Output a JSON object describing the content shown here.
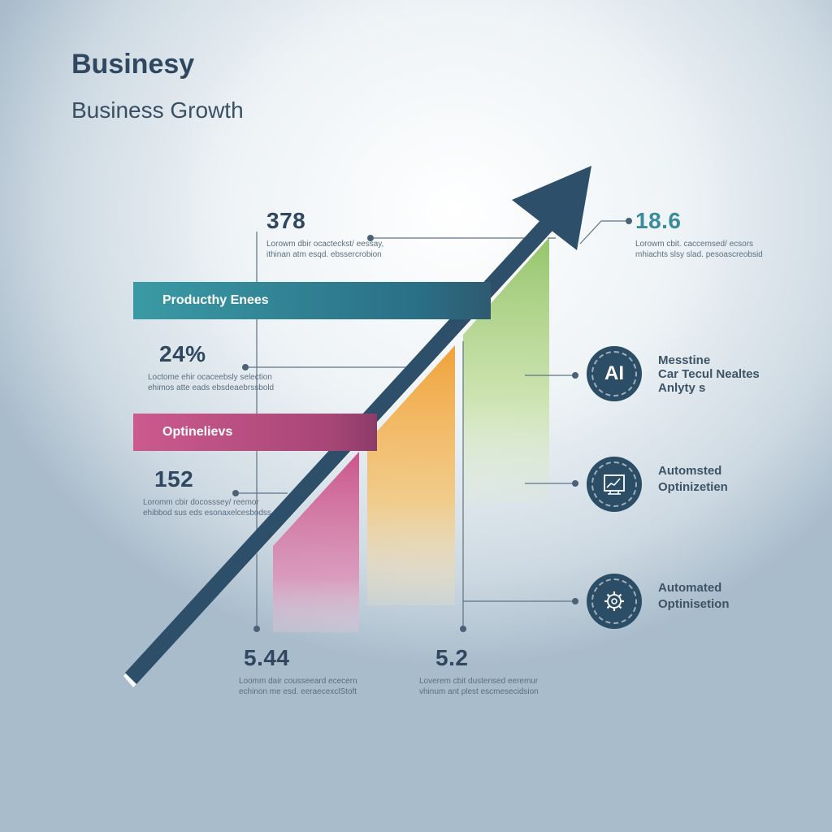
{
  "header": {
    "brand": "Businesy",
    "title": "Business Growth"
  },
  "stats": [
    {
      "value": "378",
      "text": "Lorowm dbir ocacteckst/ eessay, ithinan atm esqd. ebssercrobion"
    },
    {
      "value": "18.6",
      "text": "Lorowm cbit. caccemsed/ ecsors mhiachts slsy slad. pesoascreobsid"
    },
    {
      "value": "24%",
      "text": "Loctome ehir ocaceebsly selection ehimos atte eads ebsdeaebrssbold"
    },
    {
      "value": "152",
      "text": "Loromm cbir docosssey/ reemor ehibbod sus eds esonaxelcesbodss"
    },
    {
      "value": "5.44",
      "text": "Loomm dair cousseeard ececern echinon me esd. eeraecexclStoft"
    },
    {
      "value": "5.2",
      "text": "Loverem cbit dustensed eeremur vhinum ant plest escmesecidsion"
    }
  ],
  "banners": {
    "productivity": "Producthy Enees",
    "optimization": "Optinelievs"
  },
  "features": [
    {
      "icon": "ai-icon",
      "icon_text": "AI",
      "label_lines": [
        "Messtine",
        "Car Tecul Nealtes",
        "Anlyty s"
      ]
    },
    {
      "icon": "chart-screen-icon",
      "label_lines": [
        "Automsted",
        "Optinizetien"
      ]
    },
    {
      "icon": "gear-cog-icon",
      "label_lines": [
        "Automated",
        "Optinisetion"
      ]
    }
  ],
  "colors": {
    "navy": "#2f4860",
    "teal": "#3a9aa4",
    "pink": "#cc5a8e",
    "orange": "#f0a63c",
    "green": "#9cc870"
  }
}
